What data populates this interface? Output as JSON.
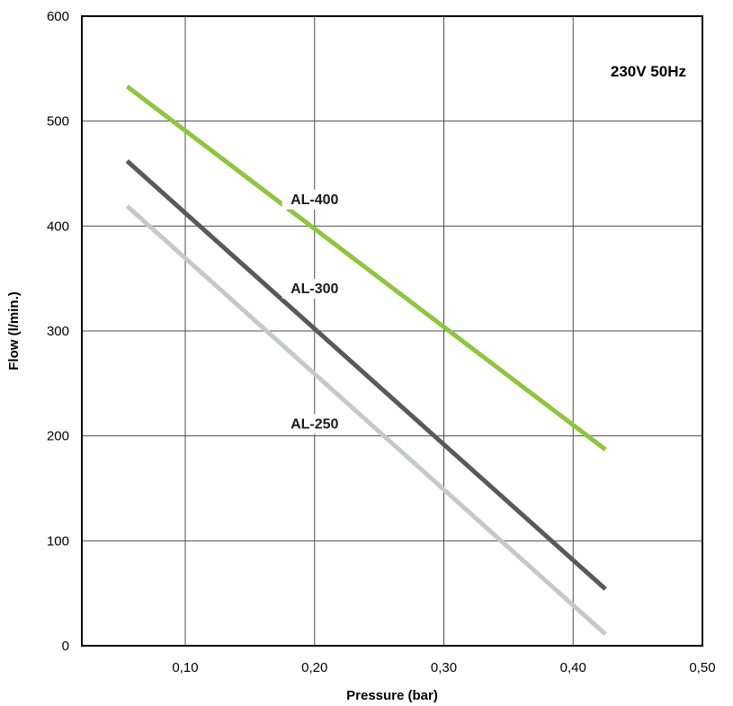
{
  "chart_data": {
    "type": "line",
    "xlabel": "Pressure (bar)",
    "ylabel": "Flow (l/min.)",
    "xlim": [
      0.02,
      0.5
    ],
    "ylim": [
      0,
      600
    ],
    "x_ticks": [
      0.1,
      0.2,
      0.3,
      0.4,
      0.5
    ],
    "x_tick_labels": [
      "0,10",
      "0,20",
      "0,30",
      "0,40",
      "0,50"
    ],
    "y_ticks": [
      0,
      100,
      200,
      300,
      400,
      500,
      600
    ],
    "y_tick_labels": [
      "0",
      "100",
      "200",
      "300",
      "400",
      "500",
      "600"
    ],
    "grid": true,
    "annotation": "230V 50Hz",
    "series": [
      {
        "name": "AL-400",
        "color": "#8dc63f",
        "x": [
          0.055,
          0.425
        ],
        "y": [
          533,
          187
        ]
      },
      {
        "name": "AL-300",
        "color": "#58595b",
        "x": [
          0.055,
          0.425
        ],
        "y": [
          462,
          54
        ]
      },
      {
        "name": "AL-250",
        "color": "#c7c8ca",
        "x": [
          0.055,
          0.425
        ],
        "y": [
          419,
          11
        ]
      }
    ]
  }
}
